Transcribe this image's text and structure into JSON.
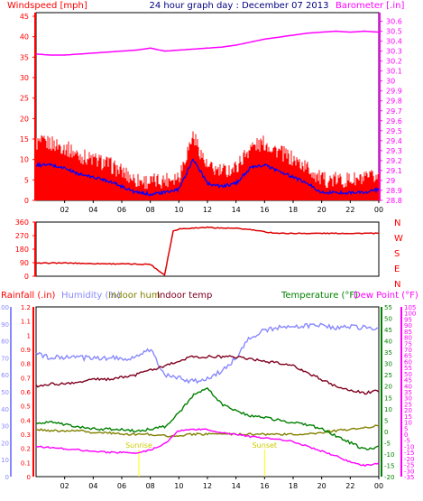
{
  "title": "24 hour graph day : December 07 2013",
  "panels": {
    "top": {
      "left_label": "Windspeed [mph]",
      "right_label": "Barometer [.in]",
      "left_ticks": [
        "0",
        "5",
        "10",
        "15",
        "20",
        "25",
        "30",
        "35",
        "40",
        "45"
      ],
      "right_ticks": [
        "28.8",
        "28.9",
        "29",
        "29.1",
        "29.2",
        "29.3",
        "29.4",
        "29.5",
        "29.6",
        "29.7",
        "29.8",
        "29.9",
        "30",
        "30.1",
        "30.2",
        "30.3",
        "30.4",
        "30.5",
        "30.6"
      ]
    },
    "middle": {
      "left_ticks": [
        "0",
        "90",
        "180",
        "270",
        "360"
      ],
      "compass": [
        "N",
        "W",
        "S",
        "E",
        "N"
      ]
    },
    "bottom": {
      "labels": {
        "rainfall": "Rainfall (.in)",
        "humidity": "Humidity (%)",
        "indoor_hum": "Indoor hum",
        "indoor_temp": "Indoor temp",
        "temperature": "Temperature (°F)",
        "dewpoint": "Dew Point (°F)"
      },
      "rain_ticks": [
        "0",
        "0.1",
        "0.2",
        "0.3",
        "0.4",
        "0.5",
        "0.6",
        "0.7",
        "0.8",
        "0.9",
        "1",
        "1.1",
        "1.2"
      ],
      "humidity_ticks": [
        "0",
        "10",
        "20",
        "30",
        "40",
        "50",
        "60",
        "70",
        "80",
        "90",
        "100"
      ],
      "temp_ticks": [
        "-20",
        "-15",
        "-10",
        "-5",
        "0",
        "5",
        "10",
        "15",
        "20",
        "25",
        "30",
        "35",
        "40",
        "45",
        "50",
        "55"
      ],
      "dew_ticks": [
        "-35",
        "-30",
        "-25",
        "-20",
        "-15",
        "-10",
        "-5",
        "0",
        "5",
        "10",
        "15",
        "20",
        "25",
        "30",
        "35",
        "40",
        "45",
        "50",
        "55",
        "60",
        "65",
        "70",
        "75",
        "80",
        "85",
        "90",
        "95",
        "100",
        "105"
      ],
      "sunrise_label": "Sunrise",
      "sunset_label": "Sunset"
    }
  },
  "x_ticks": [
    "02",
    "04",
    "06",
    "08",
    "10",
    "12",
    "14",
    "16",
    "18",
    "20",
    "22",
    "00"
  ],
  "colors": {
    "wind": "#ff0000",
    "gust_fill": "#ff0000",
    "wind_avg": "#0000ff",
    "barometer": "#ff00ff",
    "direction": "#dd0000",
    "humidity": "#8888ff",
    "indoor_hum": "#808000",
    "indoor_temp": "#800020",
    "temperature": "#008000",
    "dewpoint": "#ff00ff",
    "sun": "#ffff00",
    "left_axis_top": "#ff0000",
    "right_axis_top": "#ff00ff",
    "title": "#000080"
  },
  "chart_data": [
    {
      "type": "line",
      "title": "24 hour graph day : December 07 2013",
      "x": [
        0,
        1,
        2,
        3,
        4,
        5,
        6,
        7,
        8,
        9,
        10,
        11,
        12,
        13,
        14,
        15,
        16,
        17,
        18,
        19,
        20,
        21,
        22,
        23,
        24
      ],
      "x_ticks": [
        "02",
        "04",
        "06",
        "08",
        "10",
        "12",
        "14",
        "16",
        "18",
        "20",
        "22",
        "00"
      ],
      "series": [
        {
          "name": "Windspeed [mph]",
          "axis": "left",
          "values": [
            11,
            11,
            10,
            8,
            7,
            6,
            4,
            2,
            1.5,
            2,
            3,
            13,
            5,
            4,
            5,
            10,
            11,
            9,
            7,
            5,
            2,
            2,
            2,
            2,
            3
          ]
        },
        {
          "name": "Barometer [.in]",
          "axis": "right",
          "values": [
            30.27,
            30.26,
            30.26,
            30.27,
            30.28,
            30.29,
            30.3,
            30.31,
            30.33,
            30.3,
            30.31,
            30.32,
            30.33,
            30.34,
            30.36,
            30.39,
            30.42,
            30.44,
            30.46,
            30.48,
            30.49,
            30.5,
            30.49,
            30.5,
            30.49
          ]
        }
      ],
      "ylim_left": [
        0,
        45
      ],
      "ylim_right": [
        28.8,
        30.65
      ]
    },
    {
      "type": "line",
      "title": "",
      "x": [
        0,
        1,
        2,
        3,
        4,
        5,
        6,
        7,
        8,
        8.6,
        9,
        9.6,
        10,
        11,
        12,
        13,
        14,
        15,
        16,
        17,
        18,
        19,
        20,
        21,
        22,
        23,
        24
      ],
      "series": [
        {
          "name": "",
          "values": [
            85,
            88,
            88,
            86,
            84,
            83,
            82,
            80,
            80,
            35,
            10,
            300,
            315,
            320,
            325,
            320,
            318,
            310,
            295,
            285,
            285,
            285,
            285,
            285,
            285,
            285,
            285
          ]
        }
      ],
      "ylim": [
        0,
        360
      ]
    },
    {
      "type": "line",
      "title": "",
      "x": [
        0,
        1,
        2,
        3,
        4,
        5,
        6,
        7,
        8,
        9,
        10,
        11,
        12,
        13,
        14,
        15,
        16,
        17,
        18,
        19,
        20,
        21,
        22,
        23,
        24
      ],
      "series": [
        {
          "name": "Humidity (%)",
          "axis": "humidity",
          "values": [
            72,
            70,
            70,
            70,
            70,
            70,
            70,
            70,
            75,
            60,
            58,
            56,
            58,
            62,
            70,
            82,
            86,
            88,
            88,
            89,
            89,
            88,
            88,
            88,
            88
          ]
        },
        {
          "name": "Indoor hum",
          "axis": "humidity",
          "values": [
            28,
            27,
            27,
            27,
            26,
            26,
            25,
            25,
            25,
            24,
            24,
            25,
            25,
            25,
            25,
            25,
            25,
            25,
            25,
            25,
            26,
            27,
            28,
            29,
            30
          ]
        },
        {
          "name": "Indoor temp",
          "axis": "temperature",
          "values": [
            20,
            21,
            21,
            22,
            23,
            23,
            24,
            25,
            27,
            29,
            31,
            33,
            33,
            33,
            33,
            32,
            31,
            30,
            29,
            26,
            23,
            20,
            18,
            17,
            18
          ]
        },
        {
          "name": "Temperature (°F)",
          "axis": "temperature",
          "values": [
            4,
            4,
            3,
            2,
            1,
            1,
            1,
            0,
            1,
            2,
            8,
            16,
            19,
            12,
            9,
            7,
            6,
            5,
            4,
            3,
            1,
            -2,
            -5,
            -8,
            -7
          ]
        },
        {
          "name": "Dew Point (°F)",
          "axis": "dewpoint",
          "values": [
            -10,
            -11,
            -12,
            -13,
            -14,
            -15,
            -15,
            -16,
            -13,
            -8,
            3,
            4,
            4,
            1,
            0,
            -2,
            -3,
            -4,
            -6,
            -10,
            -14,
            -18,
            -23,
            -26,
            -24
          ]
        }
      ],
      "ylim_humidity": [
        0,
        100
      ],
      "ylim_temperature": [
        -20,
        55
      ],
      "ylim_dewpoint": [
        -35,
        105
      ],
      "sunrise_hour": 7.2,
      "sunset_hour": 16.0
    }
  ]
}
